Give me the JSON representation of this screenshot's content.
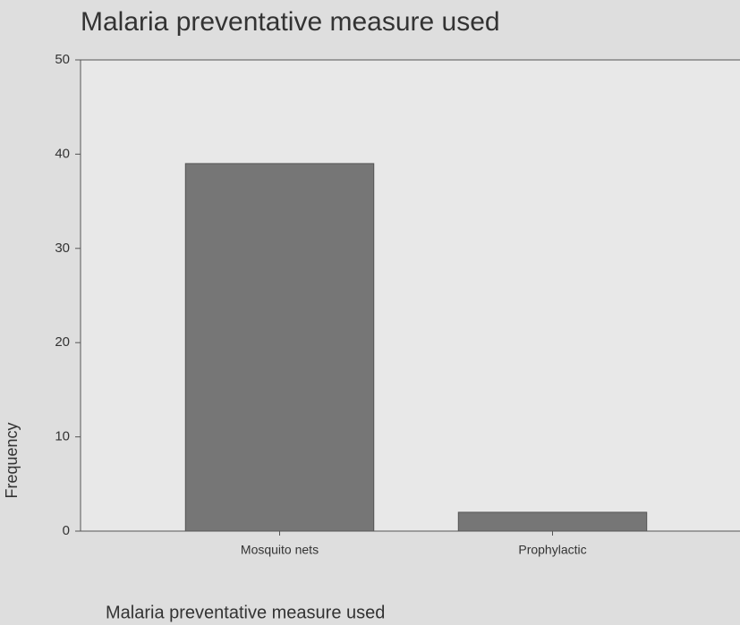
{
  "chart_data": {
    "type": "bar",
    "title": "Malaria preventative measure used",
    "x_label": "Malaria preventative measure used",
    "y_label": "Frequency",
    "categories": [
      "Mosquito nets",
      "Prophylactic"
    ],
    "values": [
      39,
      2
    ],
    "color": "#767676",
    "ylim": [
      0,
      50
    ],
    "yticks": [
      0,
      10,
      20,
      30,
      40,
      50
    ]
  }
}
